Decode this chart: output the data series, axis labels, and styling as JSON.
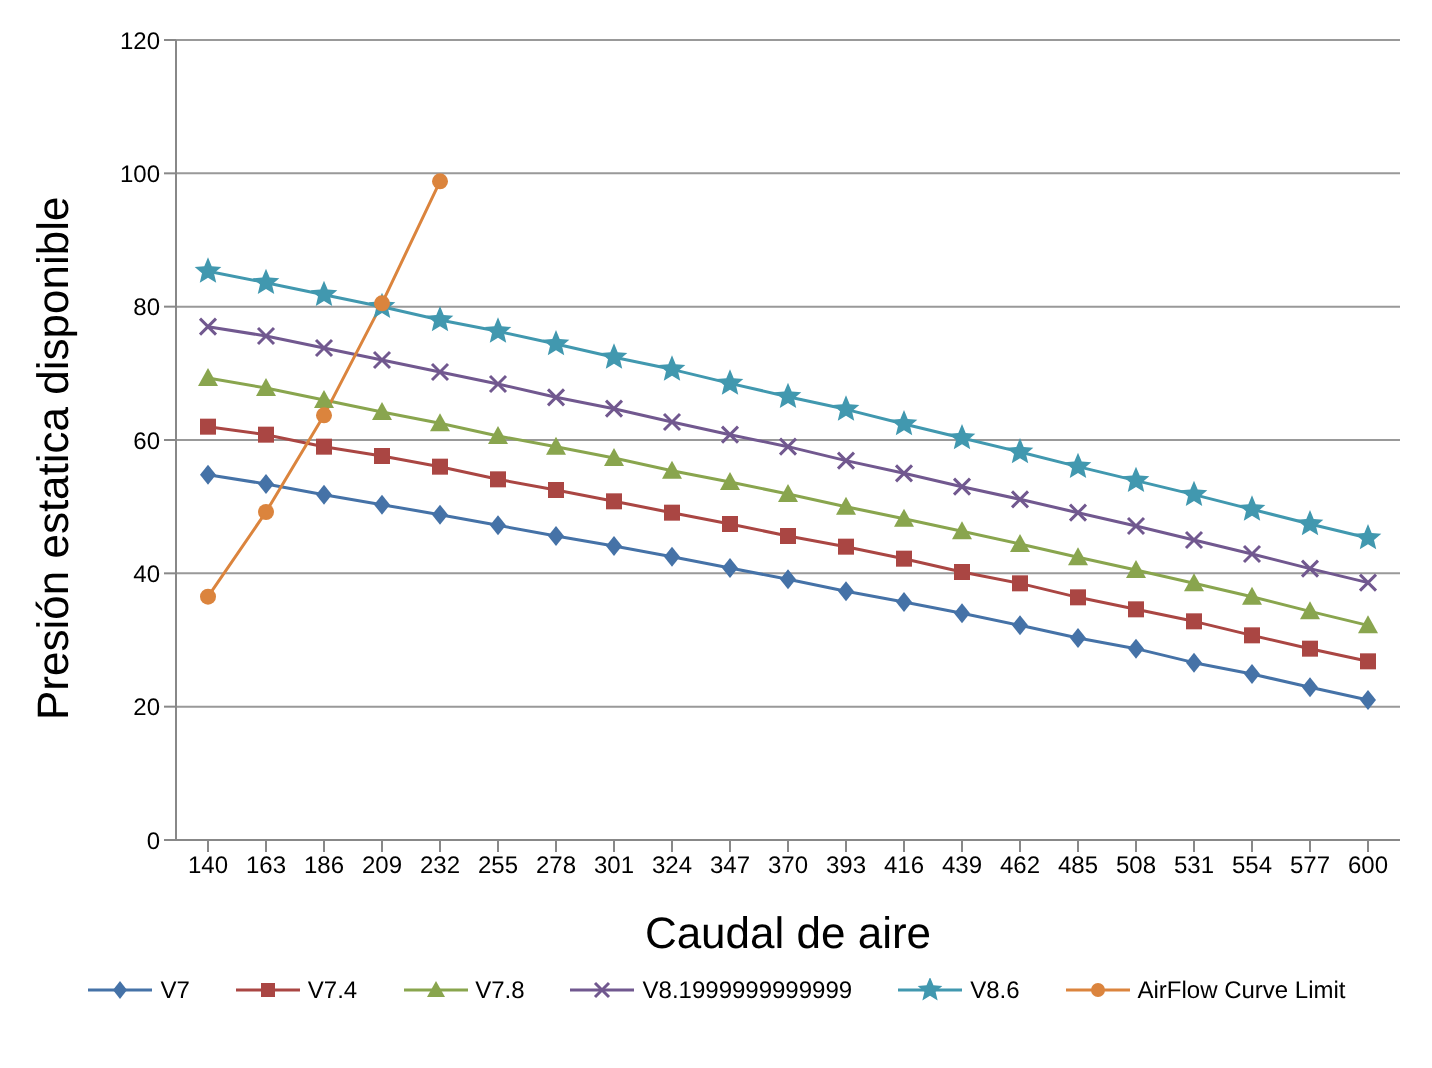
{
  "chart_data": {
    "type": "line",
    "xlabel": "Caudal de aire",
    "ylabel": "Presión estatica disponible",
    "categories": [
      "140",
      "163",
      "186",
      "209",
      "232",
      "255",
      "278",
      "301",
      "324",
      "347",
      "370",
      "393",
      "416",
      "439",
      "462",
      "485",
      "508",
      "531",
      "554",
      "577",
      "600"
    ],
    "ylim": [
      0,
      120
    ],
    "yticks": [
      0,
      20,
      40,
      60,
      80,
      100,
      120
    ],
    "grid": "y",
    "legend": "bottom",
    "series": [
      {
        "name": "V7",
        "color": "#4572a7",
        "marker": "diamond",
        "values": [
          54.8,
          53.4,
          51.8,
          50.3,
          48.8,
          47.2,
          45.6,
          44.1,
          42.5,
          40.8,
          39.1,
          37.3,
          35.7,
          34,
          32.2,
          30.3,
          28.7,
          26.6,
          24.9,
          22.9,
          21
        ]
      },
      {
        "name": "V7.4",
        "color": "#aa4643",
        "marker": "square",
        "values": [
          62,
          60.8,
          59,
          57.6,
          56,
          54.1,
          52.5,
          50.8,
          49.1,
          47.4,
          45.6,
          44,
          42.2,
          40.2,
          38.5,
          36.4,
          34.6,
          32.8,
          30.7,
          28.7,
          26.8
        ]
      },
      {
        "name": "V7.8",
        "color": "#89a54e",
        "marker": "triangle",
        "values": [
          69.3,
          67.8,
          66,
          64.2,
          62.5,
          60.6,
          59,
          57.3,
          55.4,
          53.7,
          51.9,
          50,
          48.2,
          46.3,
          44.4,
          42.4,
          40.5,
          38.5,
          36.5,
          34.3,
          32.2
        ]
      },
      {
        "name": "V8.1999999999999",
        "color": "#71588f",
        "marker": "cross",
        "values": [
          77,
          75.6,
          73.8,
          72,
          70.2,
          68.4,
          66.4,
          64.7,
          62.7,
          60.8,
          59,
          56.9,
          55,
          53,
          51.1,
          49.1,
          47.1,
          45,
          42.9,
          40.7,
          38.6
        ]
      },
      {
        "name": "V8.6",
        "color": "#4198af",
        "marker": "star",
        "values": [
          85.3,
          83.6,
          81.8,
          80,
          78,
          76.3,
          74.4,
          72.4,
          70.6,
          68.5,
          66.5,
          64.6,
          62.4,
          60.3,
          58.2,
          56,
          53.9,
          51.8,
          49.6,
          47.4,
          45.3
        ]
      },
      {
        "name": "AirFlow Curve Limit",
        "color": "#db843d",
        "marker": "circle",
        "values": [
          36.5,
          49.2,
          63.7,
          80.5,
          98.8,
          null,
          null,
          null,
          null,
          null,
          null,
          null,
          null,
          null,
          null,
          null,
          null,
          null,
          null,
          null,
          null
        ]
      }
    ]
  }
}
